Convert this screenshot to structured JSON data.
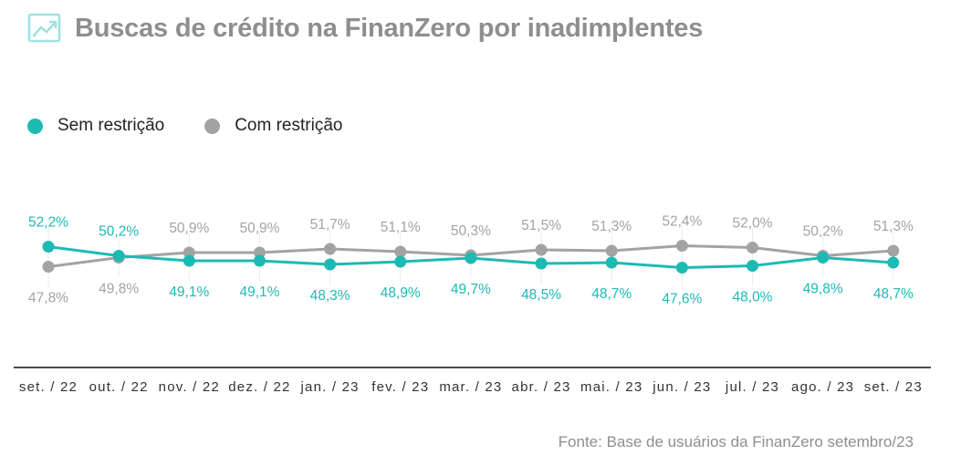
{
  "title": "Buscas de crédito na FinanZero por inadimplentes",
  "source": "Fonte: Base de usuários da FinanZero setembro/23",
  "colors": {
    "sem_restricao": "#1dbab4",
    "com_restricao": "#a3a3a3",
    "title": "#8e8e8e",
    "icon": "#9fe2df",
    "axis": "#111111"
  },
  "icon": "line-chart-icon",
  "legend": [
    {
      "label": "Sem restrição",
      "color": "#1dbab4"
    },
    {
      "label": "Com restrição",
      "color": "#a3a3a3"
    }
  ],
  "chart_data": {
    "type": "line",
    "categories": [
      "set. / 22",
      "out. / 22",
      "nov. / 22",
      "dez. / 22",
      "jan. / 23",
      "fev. / 23",
      "mar. / 23",
      "abr. / 23",
      "mai. / 23",
      "jun. / 23",
      "jul. / 23",
      "ago. / 23",
      "set. / 23"
    ],
    "series": [
      {
        "name": "Sem restrição",
        "values": [
          52.2,
          50.2,
          49.1,
          49.1,
          48.3,
          48.9,
          49.7,
          48.5,
          48.7,
          47.6,
          48.0,
          49.8,
          48.7
        ],
        "labels": [
          "52,2%",
          "50,2%",
          "49,1%",
          "49,1%",
          "48,3%",
          "48,9%",
          "49,7%",
          "48,5%",
          "48,7%",
          "47,6%",
          "48,0%",
          "49,8%",
          "48,7%"
        ]
      },
      {
        "name": "Com restrição",
        "values": [
          47.8,
          49.8,
          50.9,
          50.9,
          51.7,
          51.1,
          50.3,
          51.5,
          51.3,
          52.4,
          52.0,
          50.2,
          51.3
        ],
        "labels": [
          "47,8%",
          "49,8%",
          "50,9%",
          "50,9%",
          "51,7%",
          "51,1%",
          "50,3%",
          "51,5%",
          "51,3%",
          "52,4%",
          "52,0%",
          "50,2%",
          "51,3%"
        ]
      }
    ],
    "ylabel": "",
    "xlabel": "",
    "grid": false,
    "legend_position": "top-left"
  }
}
